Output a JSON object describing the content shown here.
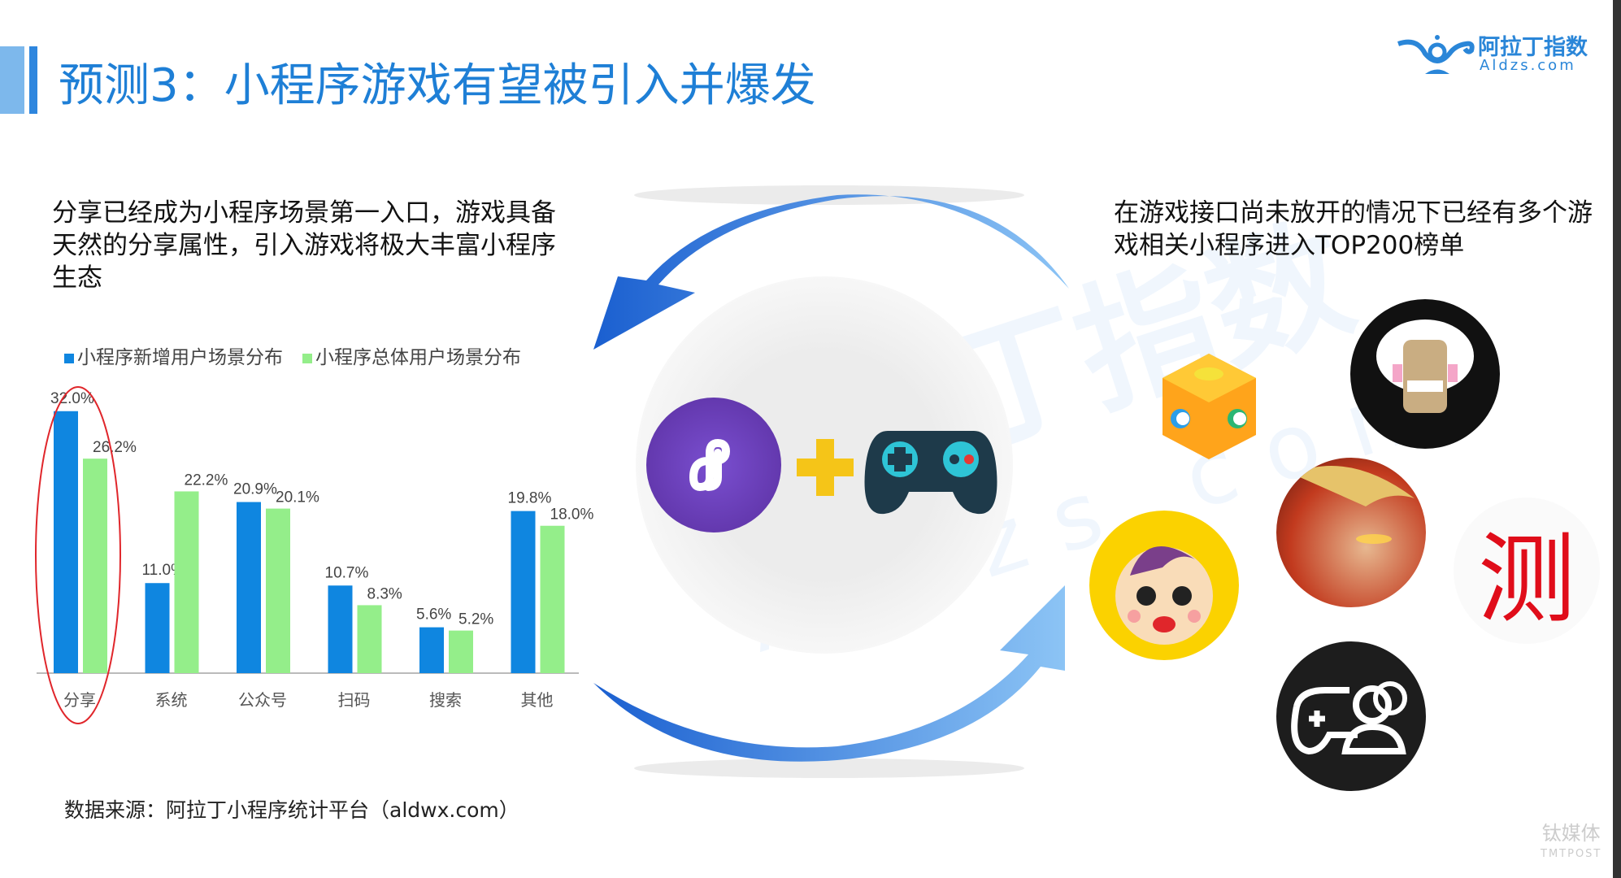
{
  "header": {
    "title": "预测3：小程序游戏有望被引入并爆发",
    "logo_cn": "阿拉丁指数",
    "logo_en": "Aldzs.com"
  },
  "left_text": "分享已经成为小程序场景第一入口，游戏具备天然的分享属性，引入游戏将极大丰富小程序生态",
  "right_text": "在游戏接口尚未放开的情况下已经有多个游戏相关小程序进入TOP200榜单",
  "source": "数据来源：阿拉丁小程序统计平台（aldwx.com）",
  "watermark": {
    "cn": "阿拉丁指数",
    "en": "Aldzs.com"
  },
  "corner_watermark": {
    "cn": "钛媒体",
    "en": "TMTPOST"
  },
  "icons": [
    "mini-program-icon",
    "plus-icon",
    "gamepad-icon",
    "cube-game-icon",
    "old-man-game-icon",
    "baby-game-icon",
    "hero-game-icon",
    "ce-test-icon",
    "game-friends-icon"
  ],
  "colors": {
    "accent": "#1e7fd6",
    "series_new": "#0f86e0",
    "series_total": "#94ee8a",
    "highlight": "#e0262b"
  },
  "chart_data": {
    "type": "bar",
    "categories": [
      "分享",
      "系统",
      "公众号",
      "扫码",
      "搜索",
      "其他"
    ],
    "series": [
      {
        "name": "小程序新增用户场景分布",
        "values": [
          32.0,
          11.0,
          20.9,
          10.7,
          5.6,
          19.8
        ],
        "labels": [
          "32.0%",
          "11.0%",
          "20.9%",
          "10.7%",
          "5.6%",
          "19.8%"
        ]
      },
      {
        "name": "小程序总体用户场景分布",
        "values": [
          26.2,
          22.2,
          20.1,
          8.3,
          5.2,
          18.0
        ],
        "labels": [
          "26.2%",
          "22.2%",
          "20.1%",
          "8.3%",
          "5.2%",
          "18.0%"
        ]
      }
    ],
    "ylim": [
      0,
      32
    ],
    "legend": "top",
    "grid": false,
    "highlighted_category": "分享"
  }
}
